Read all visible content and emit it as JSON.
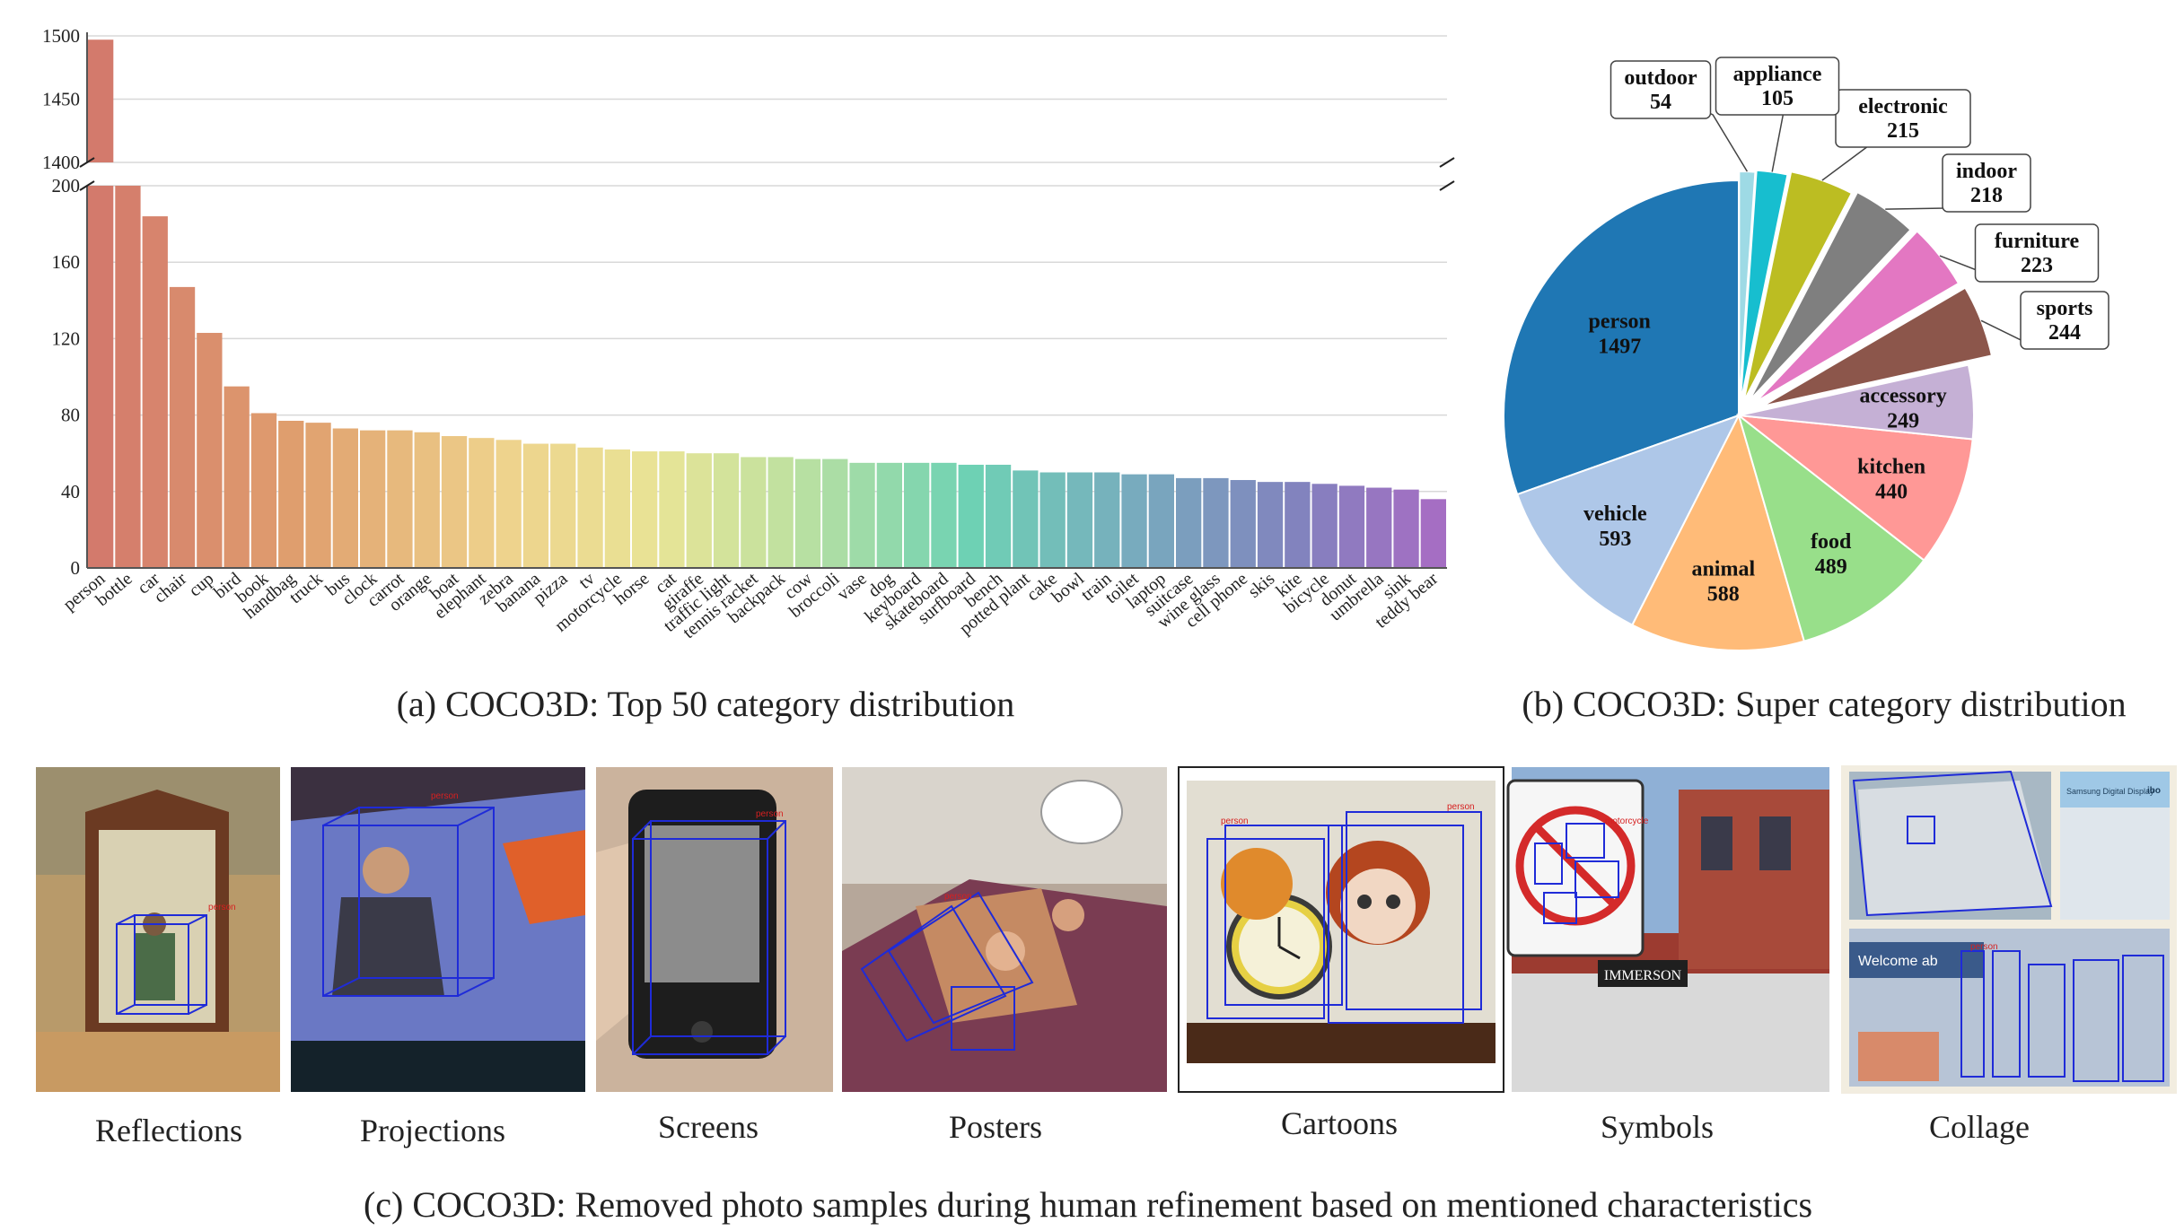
{
  "chart_data": [
    {
      "type": "bar",
      "title": "(a) COCO3D: Top 50 category distribution",
      "broken_axis": true,
      "upper_ylim": [
        1400,
        1500
      ],
      "upper_yticks": [
        "1500",
        "1450",
        "1400"
      ],
      "lower_ylim": [
        0,
        200
      ],
      "lower_yticks": [
        "200",
        "160",
        "120",
        "80",
        "40",
        "0"
      ],
      "categories": [
        "person",
        "bottle",
        "car",
        "chair",
        "cup",
        "bird",
        "book",
        "handbag",
        "truck",
        "bus",
        "clock",
        "carrot",
        "orange",
        "boat",
        "elephant",
        "zebra",
        "banana",
        "pizza",
        "tv",
        "motorcycle",
        "horse",
        "cat",
        "giraffe",
        "traffic light",
        "tennis racket",
        "backpack",
        "cow",
        "broccoli",
        "vase",
        "dog",
        "keyboard",
        "skateboard",
        "surfboard",
        "bench",
        "potted plant",
        "cake",
        "bowl",
        "train",
        "toilet",
        "laptop",
        "suitcase",
        "wine glass",
        "cell phone",
        "skis",
        "kite",
        "bicycle",
        "donut",
        "umbrella",
        "sink",
        "teddy bear"
      ],
      "values": [
        1497,
        200,
        184,
        147,
        123,
        95,
        81,
        77,
        76,
        73,
        72,
        72,
        71,
        69,
        68,
        67,
        65,
        65,
        63,
        62,
        61,
        61,
        60,
        60,
        58,
        58,
        57,
        57,
        55,
        55,
        55,
        55,
        54,
        54,
        51,
        50,
        50,
        50,
        49,
        49,
        47,
        47,
        46,
        45,
        45,
        44,
        43,
        42,
        41,
        36
      ]
    },
    {
      "type": "pie",
      "title": "(b) COCO3D: Super category distribution",
      "slices": [
        {
          "label": "person",
          "value": 1497,
          "color": "#1f77b4"
        },
        {
          "label": "vehicle",
          "value": 593,
          "color": "#aec7e8"
        },
        {
          "label": "animal",
          "value": 588,
          "color": "#ffbb78"
        },
        {
          "label": "food",
          "value": 489,
          "color": "#98df8a"
        },
        {
          "label": "kitchen",
          "value": 440,
          "color": "#ff9896"
        },
        {
          "label": "accessory",
          "value": 249,
          "color": "#c5b0d5"
        },
        {
          "label": "sports",
          "value": 244,
          "color": "#8c564b"
        },
        {
          "label": "furniture",
          "value": 223,
          "color": "#e377c2"
        },
        {
          "label": "indoor",
          "value": 218,
          "color": "#7f7f7f"
        },
        {
          "label": "electronic",
          "value": 215,
          "color": "#bcbd22"
        },
        {
          "label": "appliance",
          "value": 105,
          "color": "#17becf"
        },
        {
          "label": "outdoor",
          "value": 54,
          "color": "#9edae5"
        }
      ]
    }
  ],
  "samples": {
    "caption": "(c) COCO3D: Removed photo samples during human refinement based on mentioned characteristics",
    "items": [
      "Reflections",
      "Projections",
      "Screens",
      "Posters",
      "Cartoons",
      "Symbols",
      "Collage"
    ],
    "overlay_labels": {
      "person": "person",
      "motorcycle": "motorcycle"
    },
    "sign_texts": {
      "store_sign": "IMMERSON",
      "collage_banner": "Welcome ab",
      "screen_title": "Samsung Digital Display",
      "screen_logo": "ibo"
    }
  }
}
